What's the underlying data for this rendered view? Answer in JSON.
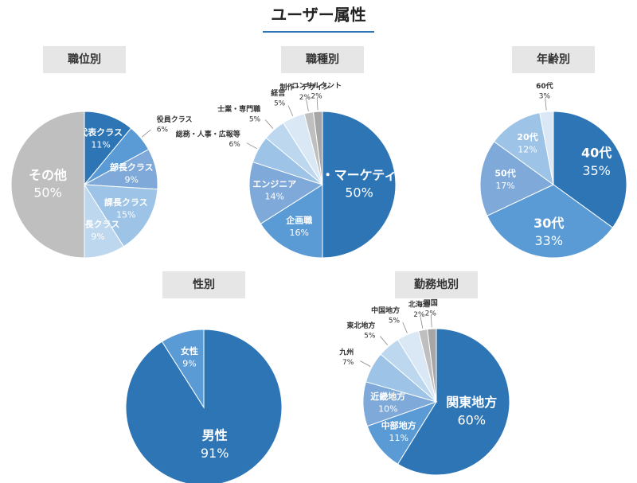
{
  "title": "ユーザー属性",
  "chart_data": [
    {
      "type": "pie",
      "title": "職位別",
      "categories": [
        "代表クラス",
        "役員クラス",
        "部長クラス",
        "課長クラス",
        "係長クラス",
        "その他"
      ],
      "values": [
        11,
        6,
        9,
        15,
        9,
        50
      ],
      "value_labels": [
        "11%",
        "6%",
        "9%",
        "15%",
        "9%",
        "50%"
      ],
      "colors": [
        "#2e75b6",
        "#5b9bd5",
        "#7ea9d9",
        "#9dc3e6",
        "#bdd7ee",
        "#bfbfbf"
      ]
    },
    {
      "type": "pie",
      "title": "職種別",
      "categories": [
        "営業・マーケティング",
        "企画職",
        "エンジニア",
        "総務・人事・広報等",
        "士業・専門職",
        "経営",
        "制作・デザイン",
        "コンサルタント"
      ],
      "values": [
        50,
        16,
        14,
        6,
        5,
        5,
        2,
        2
      ],
      "value_labels": [
        "50%",
        "16%",
        "14%",
        "6%",
        "5%",
        "5%",
        "2%",
        "2%"
      ],
      "colors": [
        "#2e75b6",
        "#5b9bd5",
        "#7ea9d9",
        "#9dc3e6",
        "#bdd7ee",
        "#dae8f5",
        "#bfbfbf",
        "#a6a6a6"
      ]
    },
    {
      "type": "pie",
      "title": "年齢別",
      "categories": [
        "40代",
        "30代",
        "50代",
        "20代",
        "60代"
      ],
      "values": [
        35,
        33,
        17,
        12,
        3
      ],
      "value_labels": [
        "35%",
        "33%",
        "17%",
        "12%",
        "3%"
      ],
      "colors": [
        "#2e75b6",
        "#5b9bd5",
        "#7ea9d9",
        "#9dc3e6",
        "#dae8f5"
      ]
    },
    {
      "type": "pie",
      "title": "性別",
      "categories": [
        "男性",
        "女性"
      ],
      "values": [
        91,
        9
      ],
      "value_labels": [
        "91%",
        "9%"
      ],
      "colors": [
        "#2e75b6",
        "#5b9bd5"
      ]
    },
    {
      "type": "pie",
      "title": "勤務地別",
      "categories": [
        "関東地方",
        "中部地方",
        "近畿地方",
        "九州",
        "東北地方",
        "中国地方",
        "北海道",
        "四国"
      ],
      "values": [
        60,
        11,
        10,
        7,
        5,
        5,
        2,
        2
      ],
      "value_labels": [
        "60%",
        "11%",
        "10%",
        "7%",
        "5%",
        "5%",
        "2%",
        "2%"
      ],
      "colors": [
        "#2e75b6",
        "#5b9bd5",
        "#7ea9d9",
        "#9dc3e6",
        "#bdd7ee",
        "#dae8f5",
        "#bfbfbf",
        "#a6a6a6"
      ]
    }
  ]
}
